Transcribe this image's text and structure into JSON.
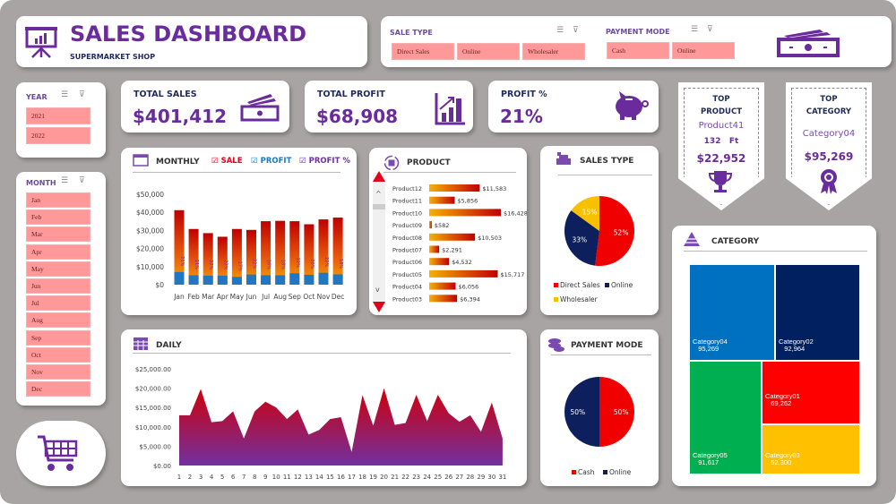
{
  "header": {
    "title": "SALES DASHBOARD",
    "subtitle": "SUPERMARKET SHOP"
  },
  "filters": {
    "sale_type": {
      "label": "SALE TYPE",
      "options": [
        "Direct Sales",
        "Online",
        "Wholesaler"
      ]
    },
    "payment_mode": {
      "label": "PAYMENT MODE",
      "options": [
        "Cash",
        "Online"
      ]
    },
    "year": {
      "label": "YEAR",
      "options": [
        "2021",
        "2022"
      ]
    },
    "month": {
      "label": "MONTH",
      "options": [
        "Jan",
        "Feb",
        "Mar",
        "Apr",
        "May",
        "Jun",
        "Jul",
        "Aug",
        "Sep",
        "Oct",
        "Nov",
        "Dec"
      ]
    }
  },
  "kpis": {
    "total_sales": {
      "label": "TOTAL SALES",
      "value": "$401,412"
    },
    "total_profit": {
      "label": "TOTAL PROFIT",
      "value": "$68,908"
    },
    "profit_pct": {
      "label": "PROFIT %",
      "value": "21%"
    }
  },
  "top_product": {
    "title1": "TOP",
    "title2": "PRODUCT",
    "name": "Product41",
    "qty": "132",
    "unit": "Ft",
    "value": "$22,952"
  },
  "top_category": {
    "title1": "TOP",
    "title2": "CATEGORY",
    "name": "Category04",
    "value": "$95,269"
  },
  "colors": {
    "accent": "#6a2c9c",
    "sale": "#e3001b",
    "profit": "#1f78c1",
    "profit_pct": "#7030a0"
  },
  "chart_data": [
    {
      "id": "monthly",
      "type": "bar",
      "title": "MONTHLY",
      "legend": [
        {
          "label": "SALE",
          "checked": true
        },
        {
          "label": "PROFIT",
          "checked": true
        },
        {
          "label": "PROFIT %",
          "checked": true
        }
      ],
      "categories": [
        "Jan",
        "Feb",
        "Mar",
        "Apr",
        "May",
        "Jun",
        "Jul",
        "Aug",
        "Sep",
        "Oct",
        "Nov",
        "Dec"
      ],
      "series": [
        {
          "name": "SALE",
          "values": [
            41200,
            30800,
            28500,
            26500,
            30800,
            30300,
            35100,
            35300,
            35100,
            33400,
            36100,
            37100
          ]
        },
        {
          "name": "PROFIT",
          "values": [
            7000,
            5200,
            5000,
            5000,
            4300,
            5600,
            5200,
            5200,
            6300,
            5500,
            6600,
            5700
          ]
        },
        {
          "name": "PROFIT %",
          "values": [
            "21%",
            "21%",
            "22%",
            "23%",
            "17%",
            "22%",
            "16%",
            "18%",
            "22%",
            "20%",
            "22%",
            "18%"
          ]
        }
      ],
      "yticks": [
        "$0",
        "$10,000",
        "$20,000",
        "$30,000",
        "$40,000",
        "$50,000"
      ],
      "ylim": [
        0,
        50000
      ]
    },
    {
      "id": "product",
      "type": "bar",
      "title": "PRODUCT",
      "orientation": "horizontal",
      "categories": [
        "Product12",
        "Product11",
        "Product10",
        "Product09",
        "Product08",
        "Product07",
        "Product06",
        "Product05",
        "Product04",
        "Product03"
      ],
      "values": [
        11583,
        5856,
        16428,
        582,
        10503,
        2291,
        4532,
        15717,
        6056,
        6394
      ],
      "labels": [
        "$11,583",
        "$5,856",
        "$16,428",
        "$582",
        "$10,503",
        "$2,291",
        "$4,532",
        "$15,717",
        "$6,056",
        "$6,394"
      ]
    },
    {
      "id": "sales_type",
      "type": "pie",
      "title": "SALES TYPE",
      "categories": [
        "Direct Sales",
        "Online",
        "Wholesaler"
      ],
      "values": [
        52,
        33,
        15
      ],
      "labels": [
        "52%",
        "33%",
        "15%"
      ],
      "colors": [
        "#f00000",
        "#0d1f5c",
        "#f7c100"
      ],
      "legend": "bottom"
    },
    {
      "id": "daily",
      "type": "area",
      "title": "DAILY",
      "x": [
        1,
        2,
        3,
        4,
        5,
        6,
        7,
        8,
        9,
        10,
        11,
        12,
        13,
        14,
        15,
        16,
        17,
        18,
        19,
        20,
        21,
        22,
        23,
        24,
        25,
        26,
        27,
        28,
        29,
        30,
        31
      ],
      "values": [
        13000,
        13000,
        19800,
        11200,
        11500,
        14000,
        7000,
        14000,
        16500,
        15000,
        12000,
        14500,
        8000,
        9200,
        12000,
        12500,
        3500,
        18200,
        10300,
        20000,
        10500,
        11000,
        18300,
        11500,
        18300,
        13500,
        11300,
        13000,
        8700,
        16300,
        7000
      ],
      "yticks": [
        "$0.00",
        "$5,000.00",
        "$10,000.00",
        "$15,000.00",
        "$20,000.00",
        "$25,000.00"
      ],
      "ylim": [
        0,
        25000
      ]
    },
    {
      "id": "payment_mode",
      "type": "pie",
      "title": "PAYMENT MODE",
      "categories": [
        "Cash",
        "Online"
      ],
      "values": [
        50,
        50
      ],
      "labels": [
        "50%",
        "50%"
      ],
      "colors": [
        "#f00000",
        "#0d1f5c"
      ],
      "legend": "bottom"
    },
    {
      "id": "category",
      "type": "treemap",
      "title": "CATEGORY",
      "items": [
        {
          "name": "Category04",
          "value": 95269,
          "label": "95,269",
          "color": "#0070c0"
        },
        {
          "name": "Category02",
          "value": 92964,
          "label": "92,964",
          "color": "#002060"
        },
        {
          "name": "Category05",
          "value": 91617,
          "label": "91,617",
          "color": "#00b050"
        },
        {
          "name": "Category01",
          "value": 69262,
          "label": "69,262",
          "color": "#ff0000"
        },
        {
          "name": "Category03",
          "value": 52300,
          "label": "52,300",
          "color": "#ffc000"
        }
      ]
    }
  ]
}
